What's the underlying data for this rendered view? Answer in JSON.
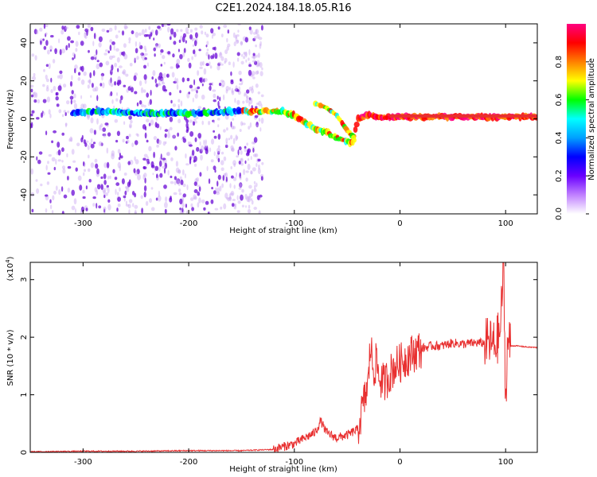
{
  "title": "C2E1.2024.184.18.05.R16",
  "colors": {
    "snr_line": "#e83030",
    "signal_core": "#e83030",
    "background": "#ffffff",
    "scatter_dense": "#6a0ad6",
    "scatter_light": "#c9a6f2"
  },
  "chart_data": [
    {
      "type": "heatmap",
      "title": "C2E1.2024.184.18.05.R16",
      "xlabel": "Height of straight line (km)",
      "ylabel": "Frequency (Hz)",
      "xlim": [
        -350,
        130
      ],
      "ylim": [
        -50,
        50
      ],
      "xticks": [
        -300,
        -200,
        -100,
        0,
        100
      ],
      "xtick_labels": [
        "-300",
        "-200",
        "-100",
        "0",
        "100"
      ],
      "yticks": [
        -40,
        -20,
        0,
        20,
        40
      ],
      "ytick_labels": [
        "-40",
        "-20",
        "0",
        "20",
        "40"
      ],
      "colorbar": {
        "label": "Normalized spectral amplitude",
        "range": [
          0,
          1
        ],
        "ticks": [
          0.0,
          0.2,
          0.4,
          0.6,
          0.8
        ],
        "tick_labels": [
          "0.0",
          "0.2",
          "0.4",
          "0.6",
          "0.8"
        ],
        "colormap": [
          "#ffffff",
          "#c080ff",
          "#6a00ff",
          "#0000ff",
          "#00a0ff",
          "#00ffff",
          "#00ff00",
          "#ffff00",
          "#ff8000",
          "#ff0000",
          "#ff0080"
        ]
      },
      "noise_region": {
        "x_range": [
          -350,
          -145
        ],
        "freq_range": [
          -50,
          50
        ]
      },
      "signal_track": {
        "x": [
          -310,
          -280,
          -250,
          -220,
          -190,
          -160,
          -140,
          -120,
          -110,
          -100,
          -95,
          -90,
          -80,
          -70,
          -60,
          -50,
          -45,
          -40,
          -35,
          -30,
          -25,
          -20,
          -10,
          0,
          20,
          40,
          60,
          80,
          90,
          95,
          100,
          110,
          130
        ],
        "freq": [
          3,
          4,
          3,
          3,
          3,
          4,
          4,
          4,
          4,
          2,
          0,
          -2,
          -5,
          -7,
          -10,
          -12,
          -13,
          0,
          1,
          2,
          2,
          1,
          1,
          1,
          1,
          1,
          1,
          1,
          1,
          1,
          1,
          1,
          1
        ]
      },
      "branch_track": {
        "x": [
          -80,
          -70,
          -60,
          -55,
          -50,
          -45,
          -42
        ],
        "freq": [
          8,
          6,
          2,
          -2,
          -6,
          -9,
          -12
        ]
      }
    },
    {
      "type": "line",
      "xlabel": "Height of straight line (km)",
      "ylabel": "SNR (10 * v/v)",
      "yscale_label": "(x10",
      "yscale_exponent": "4",
      "xlim": [
        -350,
        130
      ],
      "ylim": [
        0,
        3.3
      ],
      "xticks": [
        -300,
        -200,
        -100,
        0,
        100
      ],
      "xtick_labels": [
        "-300",
        "-200",
        "-100",
        "0",
        "100"
      ],
      "yticks": [
        0,
        1,
        2,
        3
      ],
      "ytick_labels": [
        "0",
        "1",
        "2",
        "3"
      ],
      "series": [
        {
          "x": [
            -350,
            -300,
            -250,
            -200,
            -150,
            -120,
            -100,
            -90,
            -80,
            -75,
            -70,
            -60,
            -50,
            -45,
            -40,
            -35,
            -30,
            -28,
            -25,
            -22,
            -20,
            -15,
            -10,
            -5,
            0,
            10,
            20,
            30,
            40,
            50,
            60,
            70,
            75,
            80,
            85,
            90,
            95,
            98,
            100,
            102,
            105,
            110,
            120,
            130
          ],
          "y": [
            0.01,
            0.02,
            0.02,
            0.03,
            0.03,
            0.05,
            0.15,
            0.25,
            0.35,
            0.55,
            0.35,
            0.25,
            0.3,
            0.35,
            0.4,
            0.8,
            1.2,
            1.9,
            1.4,
            1.6,
            1.3,
            1.2,
            1.35,
            1.5,
            1.55,
            1.7,
            1.8,
            1.85,
            1.85,
            1.9,
            1.88,
            1.9,
            1.9,
            1.9,
            1.9,
            1.85,
            2.1,
            3.3,
            0.9,
            1.95,
            1.85,
            1.85,
            1.83,
            1.82
          ]
        }
      ]
    }
  ]
}
